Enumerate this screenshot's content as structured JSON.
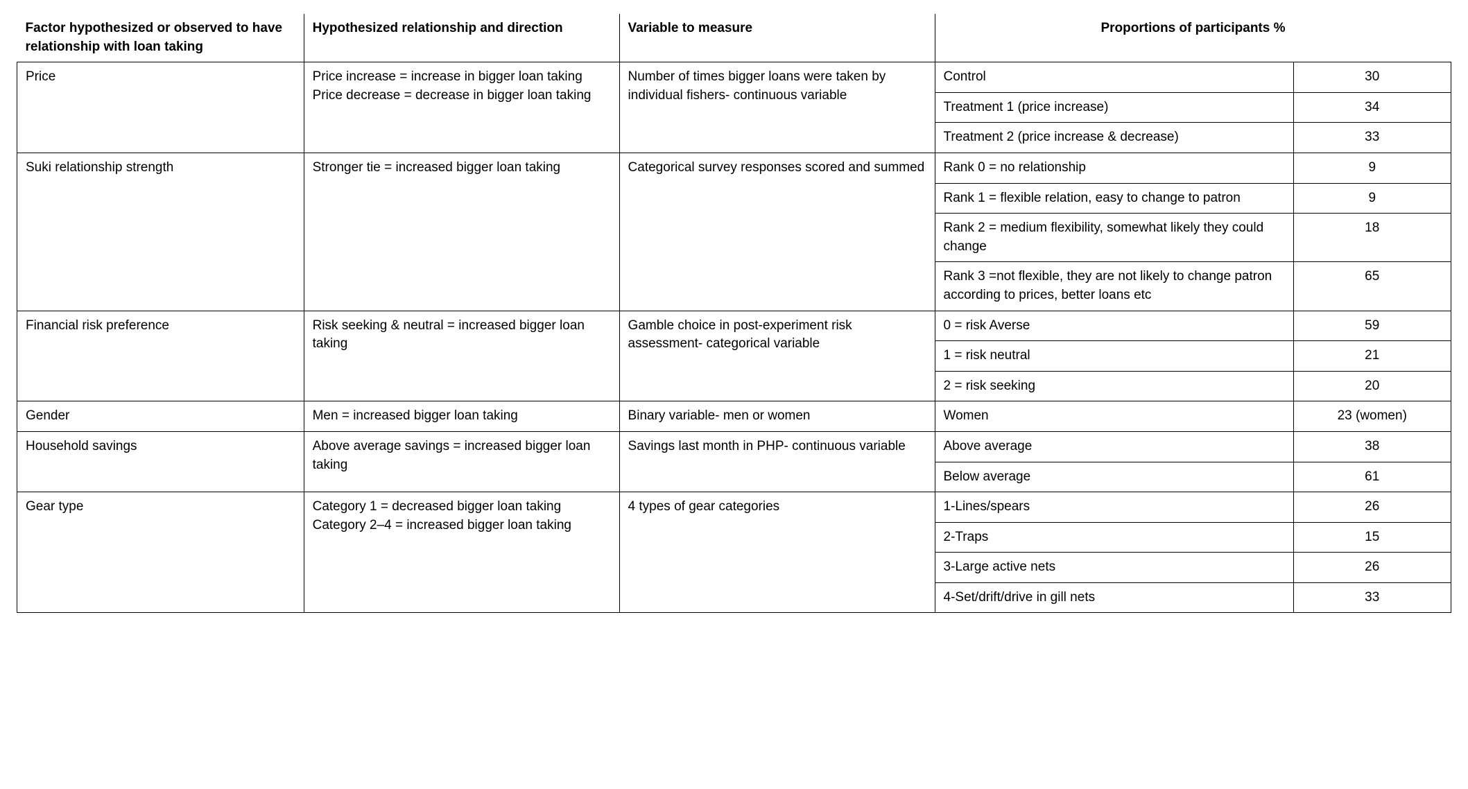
{
  "table": {
    "font_family": "Helvetica Neue",
    "font_size_pt": 14,
    "header_font_weight": 700,
    "body_font_weight": 400,
    "text_color": "#000000",
    "border_color": "#000000",
    "background_color": "#ffffff",
    "column_widths_pct": [
      20,
      22,
      22,
      25,
      11
    ],
    "headers": {
      "factor": "Factor hypothesized or observed to have relationship with loan taking",
      "relationship": "Hypothesized relationship and direction",
      "variable": "Variable to measure",
      "proportions": "Proportions of participants %"
    },
    "rows": [
      {
        "factor": "Price",
        "relationship": "Price increase = increase in bigger loan taking Price decrease = decrease in bigger loan taking",
        "variable": "Number of times bigger loans were taken by individual fishers- continuous variable",
        "proportions": [
          {
            "label": "Control",
            "value": "30"
          },
          {
            "label": "Treatment 1 (price increase)",
            "value": "34"
          },
          {
            "label": "Treatment 2 (price increase & decrease)",
            "value": "33"
          }
        ]
      },
      {
        "factor": "Suki relationship strength",
        "relationship": "Stronger tie = increased bigger loan taking",
        "variable": "Categorical survey responses scored and summed",
        "proportions": [
          {
            "label": "Rank 0 = no relationship",
            "value": "9"
          },
          {
            "label": "Rank 1 = flexible relation, easy to change to patron",
            "value": "9"
          },
          {
            "label": "Rank 2 = medium flexibility, somewhat likely they could change",
            "value": "18"
          },
          {
            "label": "Rank 3 =not flexible, they are not likely to change patron according to prices, better loans etc",
            "value": "65"
          }
        ]
      },
      {
        "factor": "Financial risk preference",
        "relationship": "Risk seeking & neutral = increased bigger loan taking",
        "variable": "Gamble choice in post-experiment risk assessment- categorical variable",
        "proportions": [
          {
            "label": "0 = risk Averse",
            "value": "59"
          },
          {
            "label": "1 = risk neutral",
            "value": "21"
          },
          {
            "label": "2 = risk seeking",
            "value": "20"
          }
        ]
      },
      {
        "factor": "Gender",
        "relationship": "Men = increased bigger loan taking",
        "variable": "Binary variable- men or women",
        "proportions": [
          {
            "label": "Women",
            "value": "23 (women)"
          }
        ]
      },
      {
        "factor": "Household savings",
        "relationship": "Above average savings = increased bigger loan taking",
        "variable": "Savings last month in PHP- continuous variable",
        "proportions": [
          {
            "label": "Above average",
            "value": "38"
          },
          {
            "label": "Below average",
            "value": "61"
          }
        ]
      },
      {
        "factor": "Gear type",
        "relationship": "Category 1 = decreased bigger loan taking Category 2–4 = increased bigger loan taking",
        "variable": "4 types of gear categories",
        "proportions": [
          {
            "label": "1-Lines/spears",
            "value": "26"
          },
          {
            "label": "2-Traps",
            "value": "15"
          },
          {
            "label": "3-Large active nets",
            "value": "26"
          },
          {
            "label": "4-Set/drift/drive in gill nets",
            "value": "33"
          }
        ]
      }
    ]
  }
}
